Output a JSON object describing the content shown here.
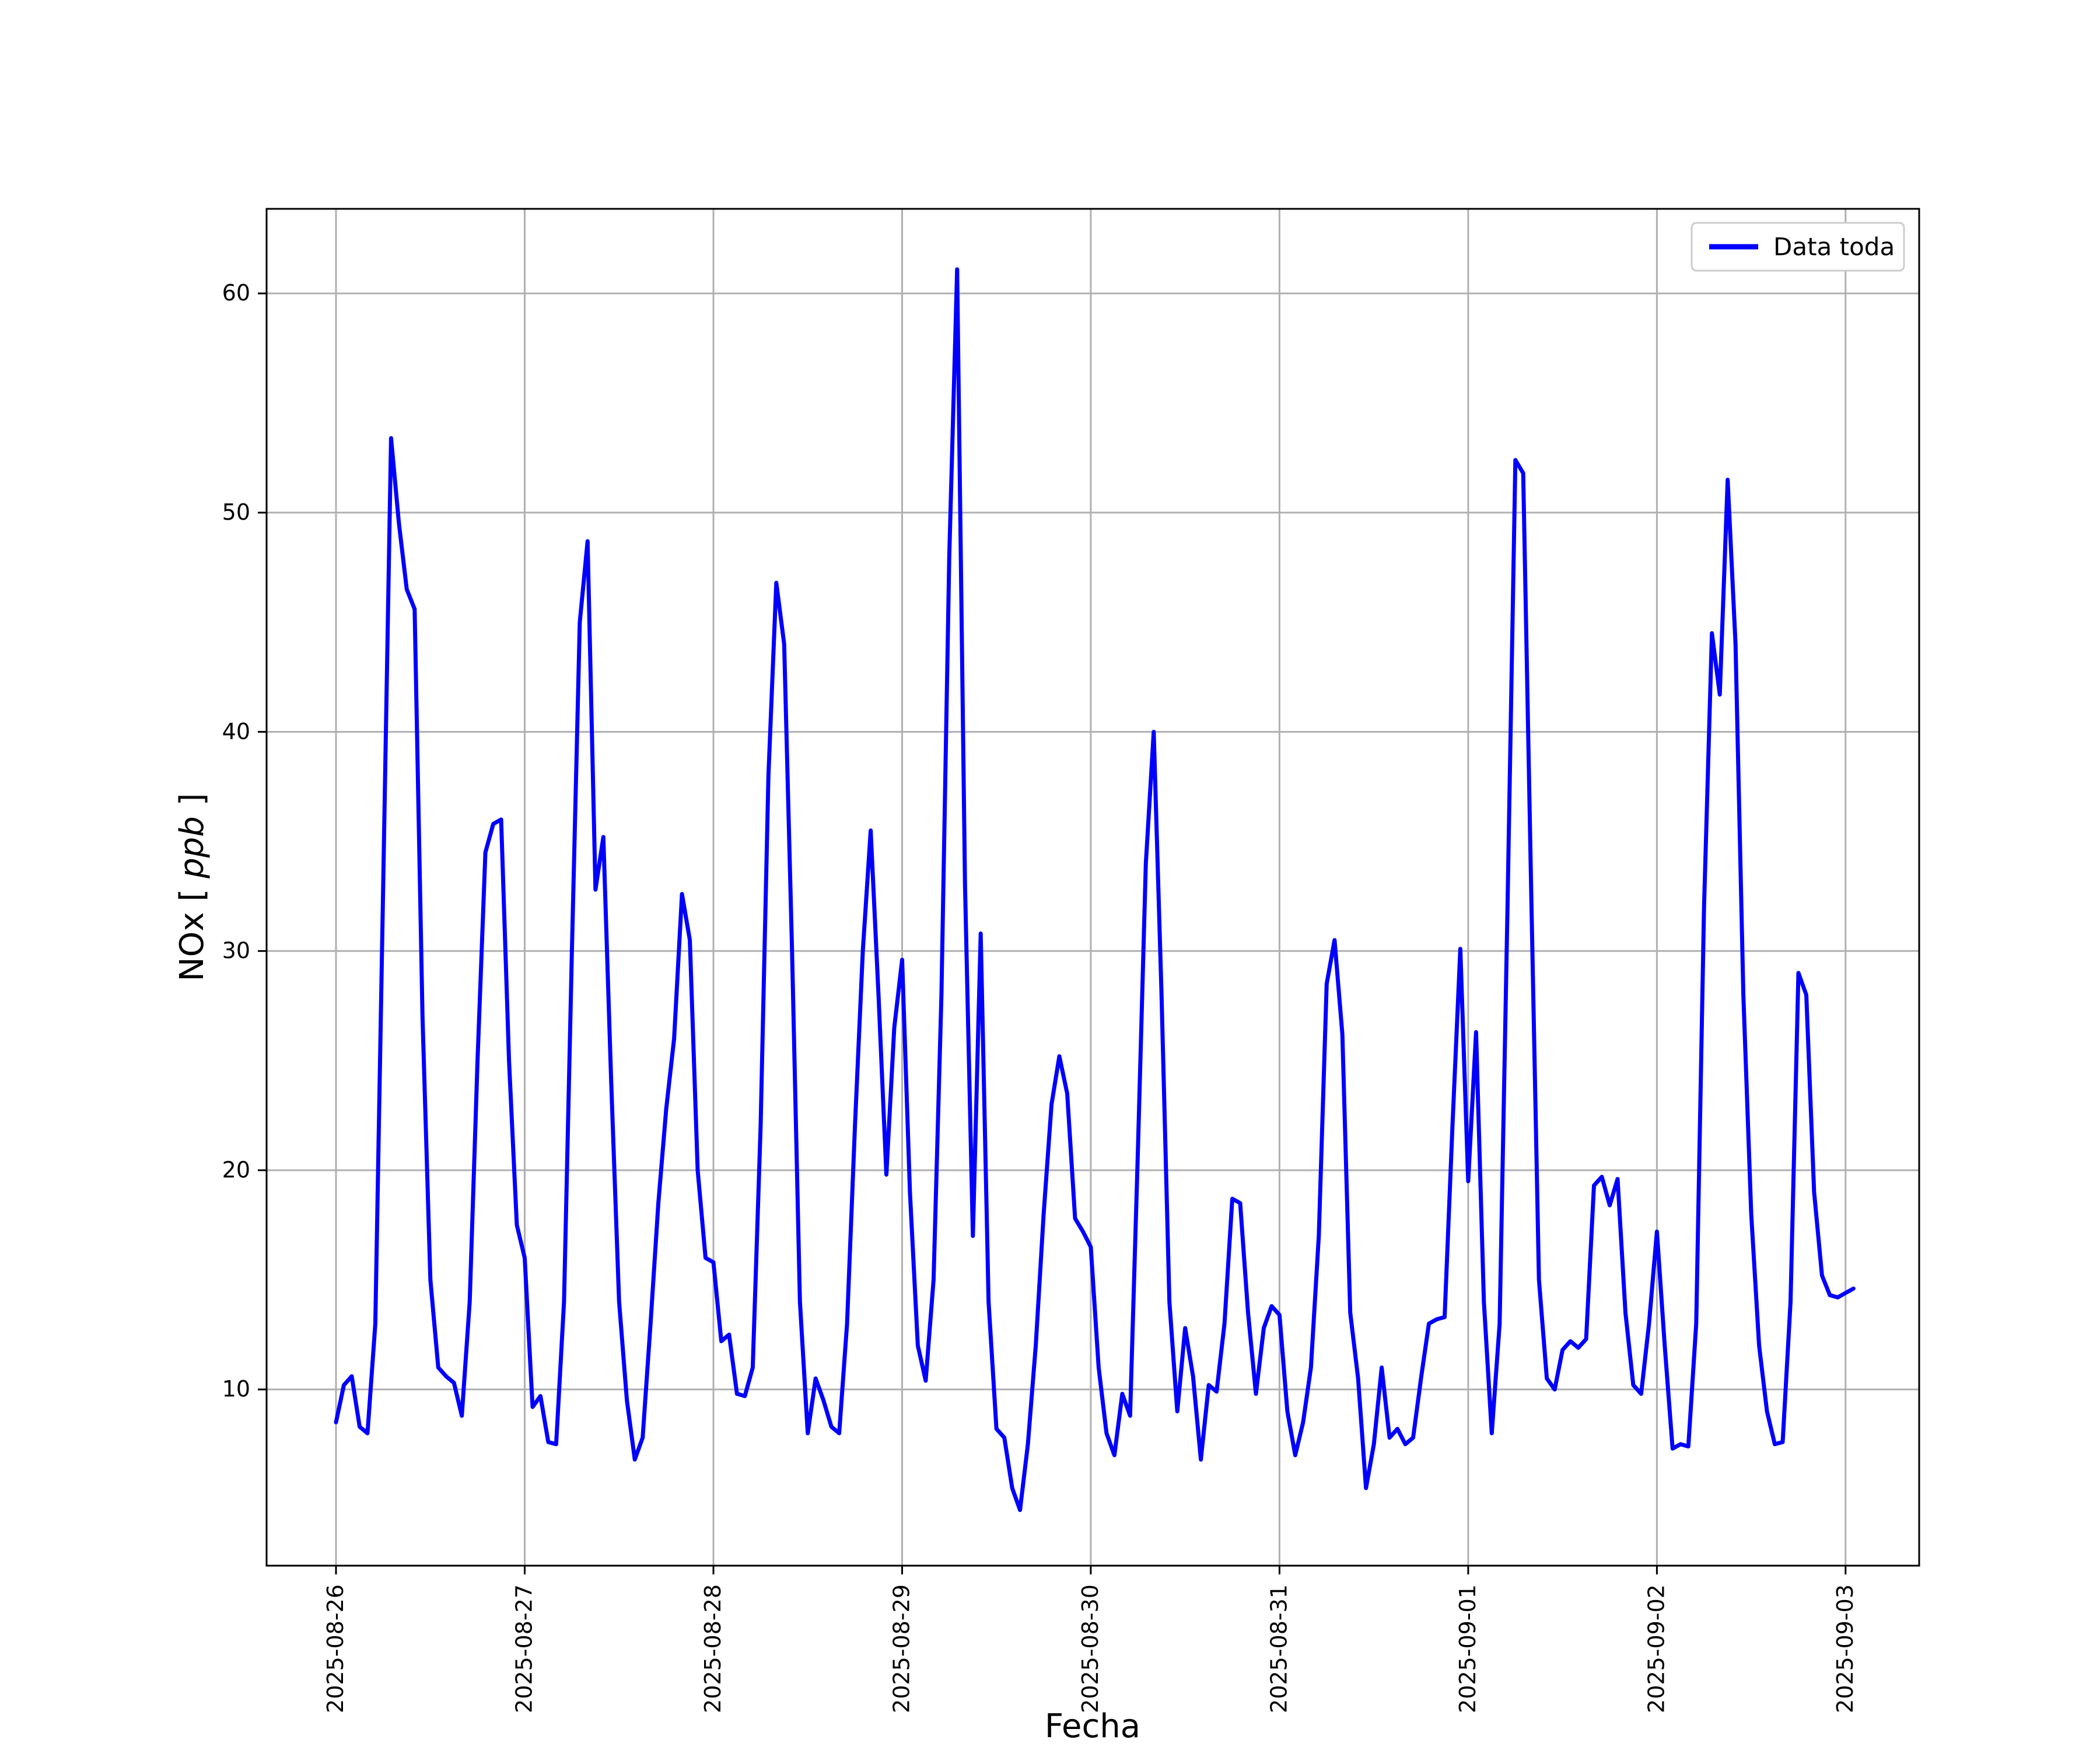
{
  "chart_data": {
    "type": "line",
    "title": "",
    "xlabel": "Fecha",
    "ylabel_parts": {
      "prefix": "NOx [",
      "math": "ppb",
      "suffix": "]"
    },
    "grid": true,
    "legend_position": "upper right",
    "legend": [
      {
        "label": "Data toda",
        "color": "#0000ff"
      }
    ],
    "x_tick_labels": [
      "2025-08-26",
      "2025-08-27",
      "2025-08-28",
      "2025-08-29",
      "2025-08-30",
      "2025-08-31",
      "2025-09-01",
      "2025-09-02",
      "2025-09-03"
    ],
    "y_ticks": [
      10,
      20,
      30,
      40,
      50,
      60
    ],
    "xlim_days": [
      -0.368,
      8.39
    ],
    "ylim": [
      1.96,
      63.86
    ],
    "series": [
      {
        "name": "Data toda",
        "color": "#0000ff",
        "start": "2025-08-26 00:00",
        "step_hours": 1,
        "values": [
          8.5,
          10.2,
          10.6,
          8.3,
          8.0,
          13.0,
          33.0,
          53.4,
          49.5,
          46.5,
          45.6,
          27.0,
          15.0,
          11.0,
          10.6,
          10.3,
          8.8,
          14.0,
          25.0,
          34.5,
          35.8,
          36.0,
          25.0,
          17.5,
          16.0,
          9.2,
          9.7,
          7.6,
          7.5,
          14.0,
          30.0,
          45.0,
          48.7,
          32.8,
          35.2,
          24.0,
          14.0,
          9.5,
          6.8,
          7.8,
          13.0,
          18.5,
          22.8,
          26.0,
          32.6,
          30.5,
          20.0,
          16.0,
          15.8,
          12.2,
          12.5,
          9.8,
          9.7,
          11.0,
          22.0,
          38.0,
          46.8,
          44.0,
          30.0,
          14.0,
          8.0,
          10.5,
          9.5,
          8.3,
          8.0,
          13.0,
          22.0,
          30.0,
          35.5,
          28.0,
          19.8,
          26.5,
          29.6,
          19.0,
          12.0,
          10.4,
          15.0,
          28.0,
          48.0,
          61.1,
          33.0,
          17.0,
          30.8,
          14.0,
          8.2,
          7.8,
          5.5,
          4.5,
          7.5,
          12.0,
          18.0,
          23.0,
          25.2,
          23.5,
          17.8,
          17.2,
          16.5,
          11.0,
          8.0,
          7.0,
          9.8,
          8.8,
          21.0,
          34.0,
          40.0,
          28.0,
          14.0,
          9.0,
          12.8,
          10.6,
          6.8,
          10.2,
          9.9,
          13.0,
          18.7,
          18.5,
          13.5,
          9.8,
          12.8,
          13.8,
          13.4,
          9.0,
          7.0,
          8.5,
          11.0,
          17.0,
          28.5,
          30.5,
          26.2,
          13.5,
          10.5,
          5.5,
          7.5,
          11.0,
          7.8,
          8.2,
          7.5,
          7.8,
          10.5,
          13.0,
          13.2,
          13.3,
          22.0,
          30.1,
          19.5,
          26.3,
          14.0,
          8.0,
          13.0,
          32.0,
          52.4,
          51.8,
          33.0,
          15.0,
          10.5,
          10.0,
          11.8,
          12.2,
          11.9,
          12.3,
          19.3,
          19.7,
          18.4,
          19.6,
          13.5,
          10.2,
          9.8,
          13.0,
          17.2,
          12.0,
          7.3,
          7.5,
          7.4,
          13.0,
          32.0,
          44.5,
          41.7,
          51.5,
          44.0,
          28.0,
          18.0,
          12.0,
          9.0,
          7.5,
          7.6,
          14.0,
          29.0,
          28.0,
          19.0,
          15.2,
          14.3,
          14.2,
          14.4,
          14.6
        ]
      }
    ]
  }
}
